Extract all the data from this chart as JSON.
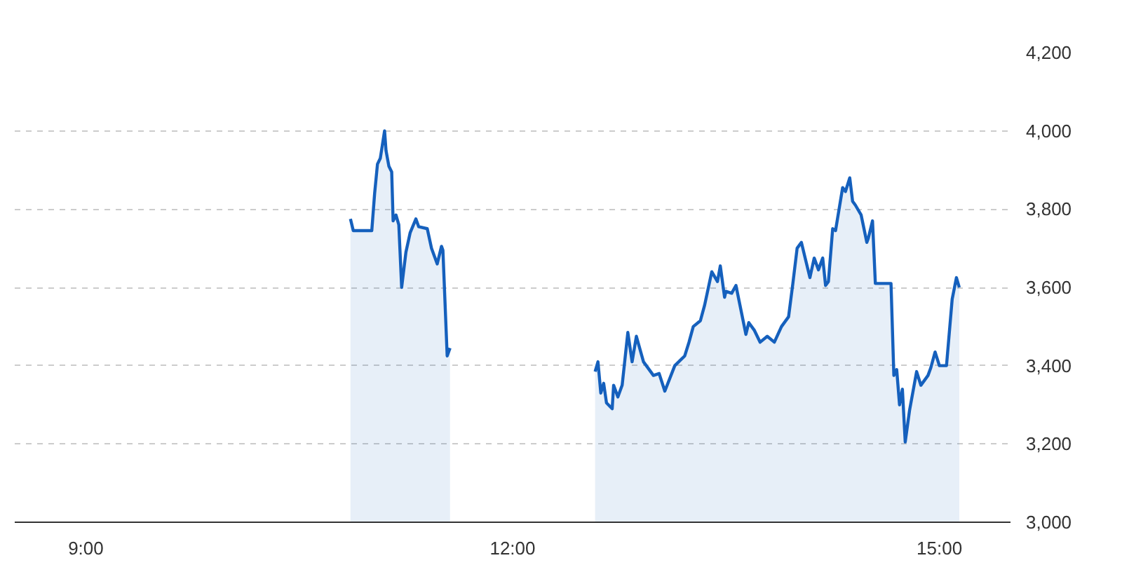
{
  "chart_data": {
    "type": "area",
    "x": [
      10.86,
      10.88,
      11.01,
      11.03,
      11.05,
      11.07,
      11.1,
      11.11,
      11.13,
      11.15,
      11.16,
      11.18,
      11.2,
      11.22,
      11.25,
      11.28,
      11.32,
      11.34,
      11.4,
      11.43,
      11.47,
      11.5,
      11.51,
      11.54,
      11.56,
      12.0,
      12.58,
      12.6,
      12.62,
      12.64,
      12.66,
      12.7,
      12.71,
      12.74,
      12.77,
      12.81,
      12.84,
      12.87,
      12.92,
      12.99,
      13.03,
      13.07,
      13.14,
      13.21,
      13.24,
      13.27,
      13.32,
      13.35,
      13.4,
      13.44,
      13.46,
      13.49,
      13.5,
      13.54,
      13.57,
      13.64,
      13.66,
      13.7,
      13.74,
      13.79,
      13.84,
      13.89,
      13.94,
      13.97,
      14.0,
      14.03,
      14.06,
      14.09,
      14.12,
      14.15,
      14.18,
      14.2,
      14.22,
      14.25,
      14.27,
      14.32,
      14.34,
      14.37,
      14.39,
      14.41,
      14.45,
      14.49,
      14.5,
      14.53,
      14.55,
      14.66,
      14.68,
      14.7,
      14.72,
      14.74,
      14.76,
      14.79,
      14.84,
      14.87,
      14.92,
      14.94,
      14.97,
      15.0,
      15.05,
      15.09,
      15.12,
      15.14
    ],
    "series": [
      {
        "color": "#1560bd",
        "values": [
          3775,
          3745,
          3745,
          3840,
          3915,
          3930,
          4000,
          3950,
          3910,
          3895,
          3770,
          3785,
          3760,
          3600,
          3690,
          3740,
          3775,
          3755,
          3750,
          3700,
          3660,
          3705,
          3695,
          3425,
          3445,
          null,
          3385,
          3410,
          3330,
          3355,
          3305,
          3290,
          3350,
          3320,
          3350,
          3485,
          3410,
          3475,
          3410,
          3375,
          3380,
          3335,
          3400,
          3425,
          3460,
          3500,
          3515,
          3555,
          3640,
          3615,
          3655,
          3575,
          3590,
          3585,
          3605,
          3480,
          3510,
          3490,
          3460,
          3475,
          3460,
          3500,
          3525,
          3610,
          3700,
          3715,
          3670,
          3625,
          3675,
          3645,
          3675,
          3605,
          3615,
          3750,
          3745,
          3855,
          3845,
          3880,
          3820,
          3810,
          3785,
          3715,
          3725,
          3770,
          3610,
          3610,
          3375,
          3390,
          3300,
          3340,
          3205,
          3285,
          3385,
          3350,
          3375,
          3395,
          3435,
          3400,
          3400,
          3570,
          3625,
          3600
        ]
      }
    ],
    "xlim": [
      8.5,
      15.5
    ],
    "xticks": [
      {
        "value": 9,
        "label": "9:00"
      },
      {
        "value": 12,
        "label": "12:00"
      },
      {
        "value": 15,
        "label": "15:00"
      }
    ],
    "ylim": [
      3000,
      4200
    ],
    "yticks": [
      {
        "value": 3000,
        "label": "3,000"
      },
      {
        "value": 3200,
        "label": "3,200"
      },
      {
        "value": 3400,
        "label": "3,400"
      },
      {
        "value": 3600,
        "label": "3,600"
      },
      {
        "value": 3800,
        "label": "3,800"
      },
      {
        "value": 4000,
        "label": "4,000"
      },
      {
        "value": 4200,
        "label": "4,200"
      }
    ],
    "grid": "y"
  }
}
